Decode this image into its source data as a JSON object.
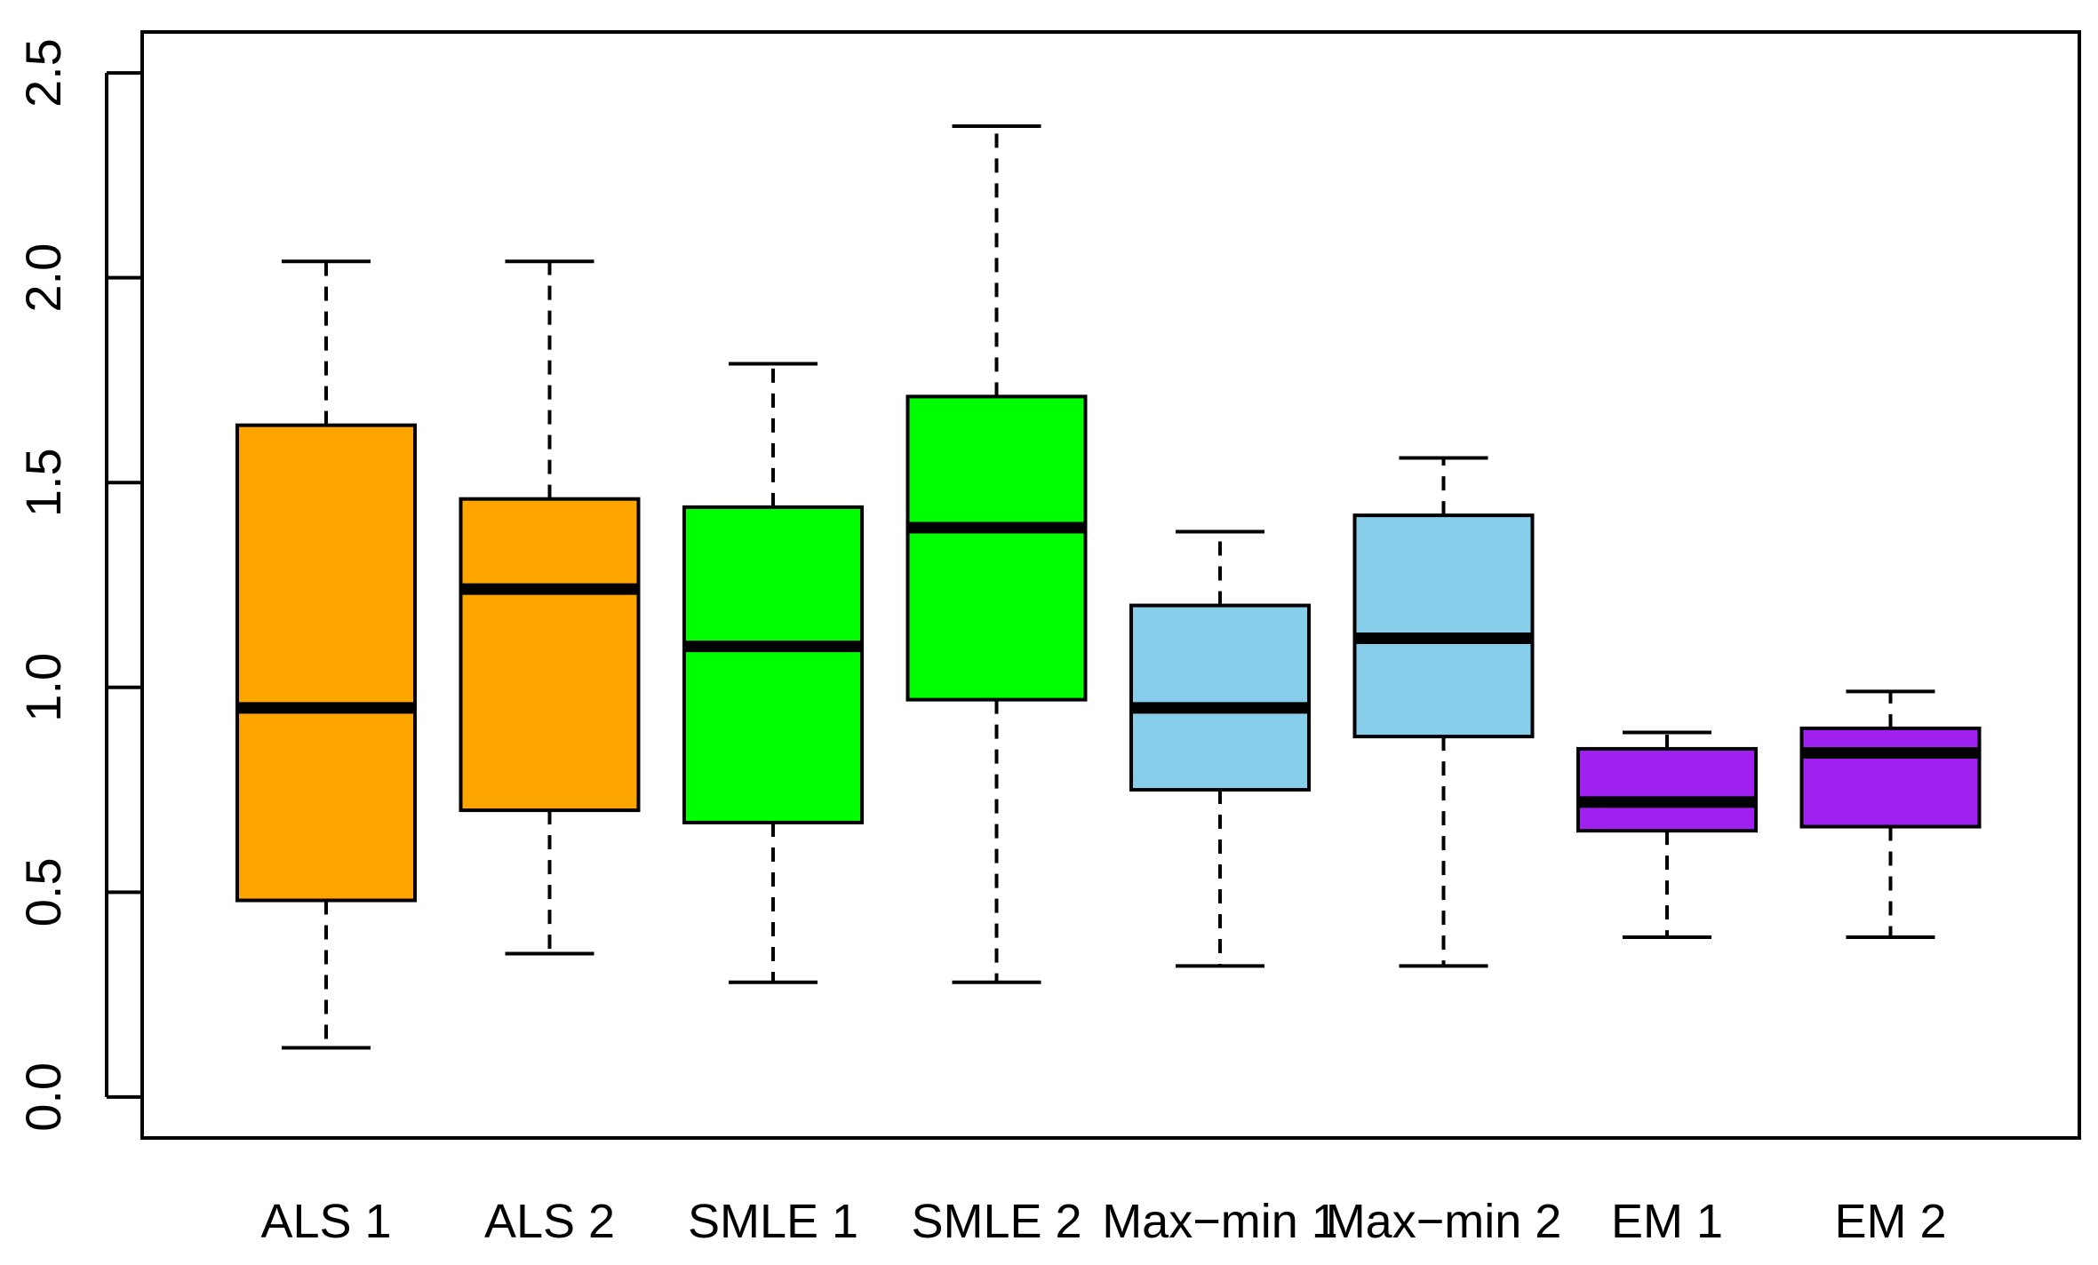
{
  "chart_data": {
    "type": "boxplot",
    "title": "",
    "xlabel": "",
    "ylabel": "",
    "ylim": [
      -0.1,
      2.6
    ],
    "yticks": [
      0.0,
      0.5,
      1.0,
      1.5,
      2.0,
      2.5
    ],
    "ytick_labels": [
      "0.0",
      "0.5",
      "1.0",
      "1.5",
      "2.0",
      "2.5"
    ],
    "grid": false,
    "legend": "none",
    "categories": [
      "ALS 1",
      "ALS 2",
      "SMLE 1",
      "SMLE 2",
      "Max−min 1",
      "Max−min 2",
      "EM 1",
      "EM 2"
    ],
    "boxes": [
      {
        "name": "ALS 1",
        "whisker_low": 0.12,
        "q1": 0.48,
        "median": 0.95,
        "q3": 1.64,
        "whisker_high": 2.04,
        "color": "#FFA500"
      },
      {
        "name": "ALS 2",
        "whisker_low": 0.35,
        "q1": 0.7,
        "median": 1.24,
        "q3": 1.46,
        "whisker_high": 2.04,
        "color": "#FFA500"
      },
      {
        "name": "SMLE 1",
        "whisker_low": 0.28,
        "q1": 0.67,
        "median": 1.1,
        "q3": 1.44,
        "whisker_high": 1.79,
        "color": "#00FF00"
      },
      {
        "name": "SMLE 2",
        "whisker_low": 0.28,
        "q1": 0.97,
        "median": 1.39,
        "q3": 1.71,
        "whisker_high": 2.37,
        "color": "#00FF00"
      },
      {
        "name": "Max−min 1",
        "whisker_low": 0.32,
        "q1": 0.75,
        "median": 0.95,
        "q3": 1.2,
        "whisker_high": 1.38,
        "color": "#87CEEB"
      },
      {
        "name": "Max−min 2",
        "whisker_low": 0.32,
        "q1": 0.88,
        "median": 1.12,
        "q3": 1.42,
        "whisker_high": 1.56,
        "color": "#87CEEB"
      },
      {
        "name": "EM 1",
        "whisker_low": 0.39,
        "q1": 0.65,
        "median": 0.72,
        "q3": 0.85,
        "whisker_high": 0.89,
        "color": "#A020F0"
      },
      {
        "name": "EM 2",
        "whisker_low": 0.39,
        "q1": 0.66,
        "median": 0.84,
        "q3": 0.9,
        "whisker_high": 0.99,
        "color": "#A020F0"
      }
    ]
  }
}
